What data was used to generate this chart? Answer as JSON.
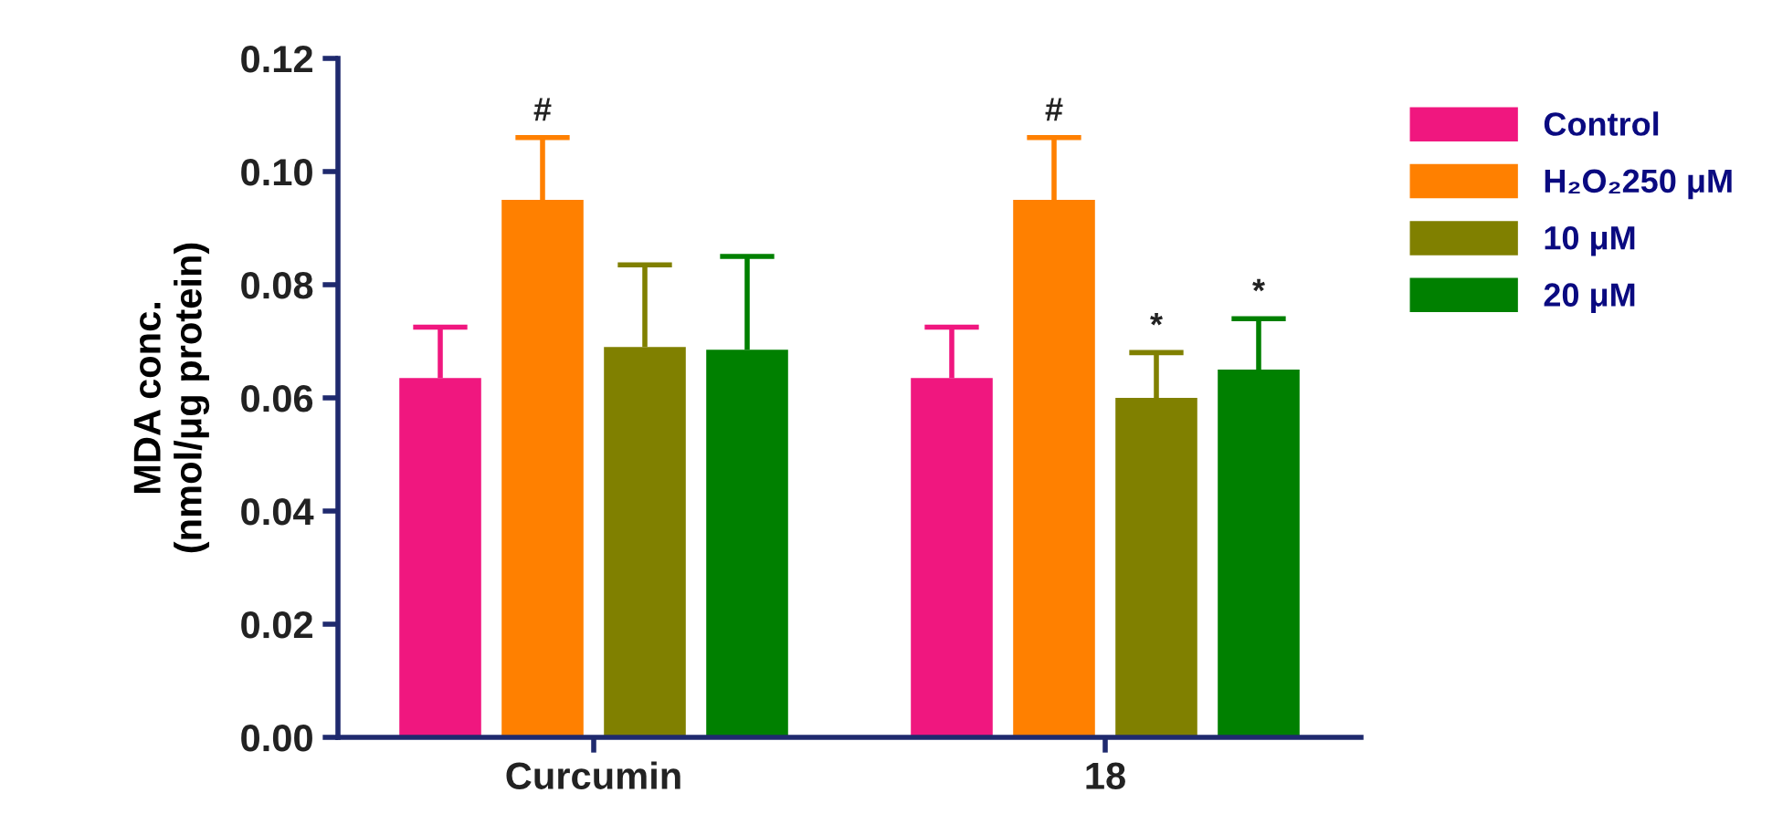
{
  "chart_data": {
    "type": "bar",
    "ylabel": "MDA conc.\n(nmol/μg protein)",
    "categories": [
      "Curcumin",
      "18"
    ],
    "series": [
      {
        "name": "Control",
        "color": "#f0177f",
        "values": [
          0.0635,
          0.0635
        ],
        "errors": [
          [
            0.0635,
            0.0725
          ],
          [
            0.0635,
            0.0725
          ]
        ]
      },
      {
        "name": "H₂O₂250 μM",
        "color": "#ff8000",
        "values": [
          0.095,
          0.095
        ],
        "value_labels": [
          "#",
          "#"
        ],
        "errors": [
          [
            0.095,
            0.106
          ],
          [
            0.095,
            0.106
          ]
        ]
      },
      {
        "name": "10 μM",
        "color": "#808000",
        "values": [
          0.069,
          0.06
        ],
        "value_labels": [
          null,
          "*"
        ],
        "errors": [
          [
            0.069,
            0.0835
          ],
          [
            0.06,
            0.068
          ]
        ]
      },
      {
        "name": "20 μM",
        "color": "#008000",
        "values": [
          0.0685,
          0.065
        ],
        "value_labels": [
          null,
          "*"
        ],
        "errors": [
          [
            0.0685,
            0.085
          ],
          [
            0.065,
            0.074
          ]
        ]
      }
    ],
    "ylim": [
      0,
      0.12
    ],
    "yticks": [
      {
        "value": 0,
        "label": "0.00"
      },
      {
        "value": 0.02,
        "label": "0.02"
      },
      {
        "value": 0.04,
        "label": "0.04"
      },
      {
        "value": 0.06,
        "label": "0.06"
      },
      {
        "value": 0.08,
        "label": "0.08"
      },
      {
        "value": 0.1,
        "label": "0.10"
      },
      {
        "value": 0.12,
        "label": "0.12"
      }
    ],
    "legend": "right",
    "grid": false
  }
}
